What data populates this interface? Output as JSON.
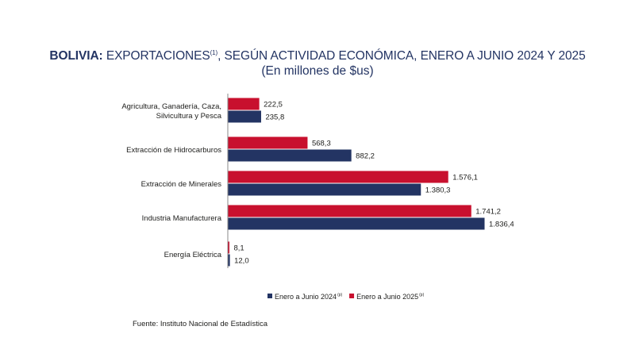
{
  "header": {
    "title_bold": "BOLIVIA:",
    "title_main": " EXPORTACIONES",
    "title_sup": "(1)",
    "title_rest": ", SEGÚN ACTIVIDAD ECONÓMICA, ENERO A JUNIO 2024 Y 2025",
    "subtitle": "(En millones de $us)"
  },
  "footer": {
    "source": "Fuente: Instituto Nacional de Estadística"
  },
  "chart_data": {
    "type": "bar",
    "orientation": "horizontal",
    "title": "BOLIVIA: EXPORTACIONES(1), SEGÚN ACTIVIDAD ECONÓMICA, ENERO A JUNIO 2024 Y 2025",
    "subtitle": "(En millones de $us)",
    "categories": [
      [
        "Agricultura, Ganadería, Caza,",
        "Silvicultura y Pesca"
      ],
      [
        "Extracción de Hidrocarburos"
      ],
      [
        "Extracción de Minerales"
      ],
      [
        "Industria Manufacturera"
      ],
      [
        "Energía Eléctrica"
      ]
    ],
    "series": [
      {
        "name": "Enero a Junio  2025",
        "name_sup": "(p)",
        "color": "#c8102e",
        "values": [
          222.5,
          568.3,
          1576.1,
          1741.2,
          8.1
        ],
        "labels": [
          "222,5",
          "568,3",
          "1.576,1",
          "1.741,2",
          "8,1"
        ]
      },
      {
        "name": "Enero a Junio 2024",
        "name_sup": "(p)",
        "color": "#233463",
        "values": [
          235.8,
          882.2,
          1380.3,
          1836.4,
          12.0
        ],
        "labels": [
          "235,8",
          "882,2",
          "1.380,3",
          "1.836,4",
          "12,0"
        ]
      }
    ],
    "legend_order": [
      1,
      0
    ],
    "xlim": [
      0,
      1900
    ],
    "grid": false,
    "legend_position": "bottom"
  }
}
